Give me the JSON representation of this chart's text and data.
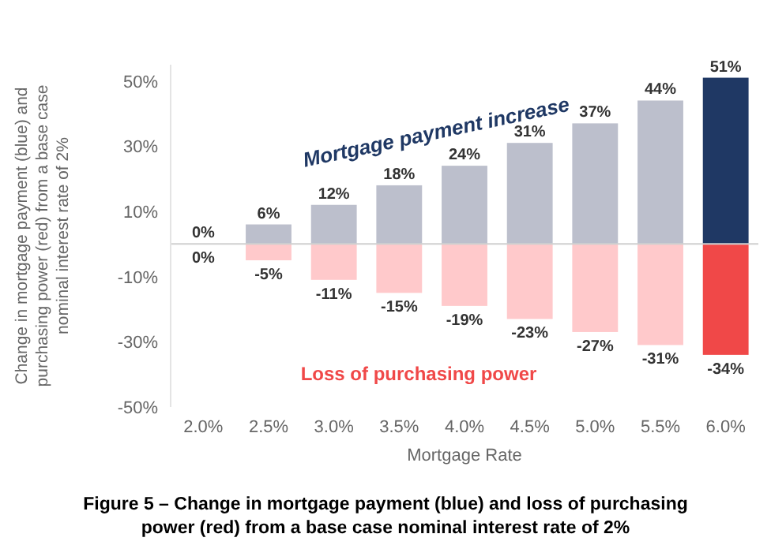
{
  "chart_data": {
    "type": "bar",
    "title": "Figure 5 – Change in mortgage payment (blue) and loss of purchasing power (red) from a base case nominal interest rate of 2%",
    "xlabel": "Mortgage Rate",
    "ylabel": "Change in mortgage payment (blue) and purchasing power (red) from a base case nominal interest rate of 2%",
    "categories": [
      "2.0%",
      "2.5%",
      "3.0%",
      "3.5%",
      "4.0%",
      "4.5%",
      "5.0%",
      "5.5%",
      "6.0%"
    ],
    "stacked": true,
    "series": [
      {
        "values": [
          0,
          6,
          12,
          18,
          24,
          31,
          37,
          44,
          51
        ],
        "colors": [
          "#bcbfcc",
          "#bcbfcc",
          "#bcbfcc",
          "#bcbfcc",
          "#bcbfcc",
          "#bcbfcc",
          "#bcbfcc",
          "#bcbfcc",
          "#1f3864"
        ],
        "value_labels": [
          "0%",
          "6%",
          "12%",
          "18%",
          "24%",
          "31%",
          "37%",
          "44%",
          "51%"
        ]
      },
      {
        "values": [
          0,
          -5,
          -11,
          -15,
          -19,
          -23,
          -27,
          -31,
          -34
        ],
        "colors": [
          "#ffc9cb",
          "#ffc9cb",
          "#ffc9cb",
          "#ffc9cb",
          "#ffc9cb",
          "#ffc9cb",
          "#ffc9cb",
          "#ffc9cb",
          "#f04848"
        ],
        "value_labels": [
          "0%",
          "-5%",
          "-11%",
          "-15%",
          "-19%",
          "-23%",
          "-27%",
          "-31%",
          "-34%"
        ]
      }
    ],
    "ylim": [
      -50,
      55
    ],
    "yticks": [
      {
        "value": -50,
        "label": "-50%"
      },
      {
        "value": -30,
        "label": "-30%"
      },
      {
        "value": -10,
        "label": "-10%"
      },
      {
        "value": 10,
        "label": "10%"
      },
      {
        "value": 30,
        "label": "30%"
      },
      {
        "value": 50,
        "label": "50%"
      }
    ],
    "annotations": [
      "Mortgage payment increase",
      "Loss of purchasing power"
    ]
  }
}
